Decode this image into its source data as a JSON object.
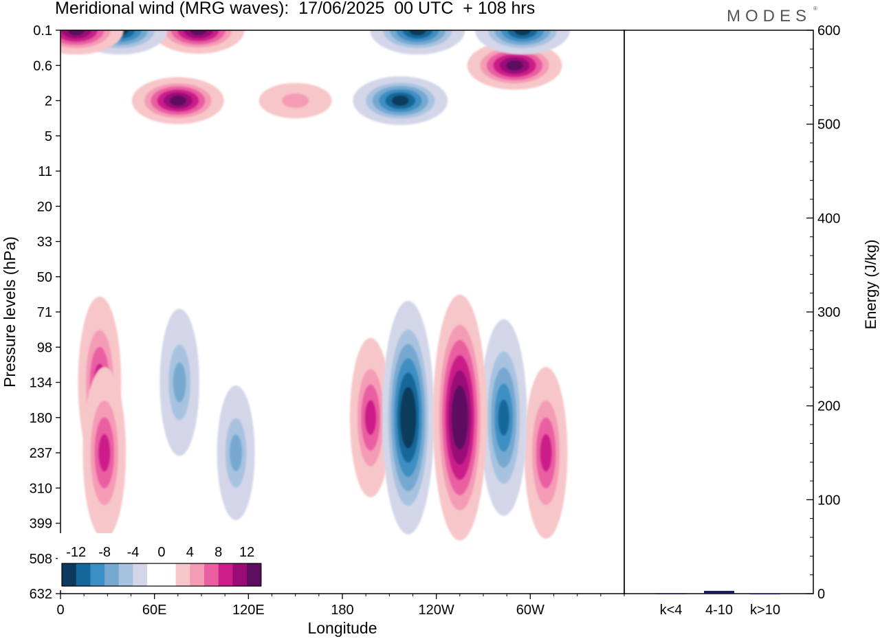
{
  "header": {
    "title": "Meridional wind (MRG waves):  17/06/2025  00 UTC  + 108 hrs",
    "brand": "MODES",
    "brand_mark": "®"
  },
  "chart_data": [
    {
      "type": "heatmap",
      "title": "Meridional wind (MRG waves):  17/06/2025  00 UTC  + 108 hrs",
      "xlabel": "Longitude",
      "ylabel": "Pressure levels (hPa)",
      "x_ticks": [
        "0",
        "60E",
        "120E",
        "180",
        "120W",
        "60W"
      ],
      "y_ticks": [
        "0.1",
        "0.6",
        "2",
        "5",
        "11",
        "20",
        "33",
        "50",
        "71",
        "98",
        "134",
        "180",
        "237",
        "310",
        "399",
        "508",
        "632"
      ],
      "colorbar": {
        "labels": [
          "-12",
          "-8",
          "-4",
          "0",
          "4",
          "8",
          "12"
        ],
        "colors": [
          "#0d3a5c",
          "#13679a",
          "#3c8fc4",
          "#77a9d0",
          "#a8c3e0",
          "#d3d6e8",
          "#ffffff",
          "#ffffff",
          "#f7c6c8",
          "#f49bb6",
          "#ea5fa2",
          "#cc1e8a",
          "#9a0b78",
          "#5b0f5e"
        ]
      },
      "features": [
        {
          "lon": 222,
          "level": "180",
          "value": -13
        },
        {
          "lon": 255,
          "level": "180",
          "value": 14
        },
        {
          "lon": 283,
          "level": "180",
          "value": -10
        },
        {
          "lon": 310,
          "level": "237",
          "value": 8
        },
        {
          "lon": 198,
          "level": "180",
          "value": 7
        },
        {
          "lon": 25,
          "level": "134",
          "value": 8
        },
        {
          "lon": 28,
          "level": "237",
          "value": 8
        },
        {
          "lon": 76,
          "level": "134",
          "value": -6
        },
        {
          "lon": 112,
          "level": "237",
          "value": -5
        },
        {
          "lon": 150,
          "level": "2",
          "value": 4
        },
        {
          "lon": 38,
          "level": "0.1",
          "value": -12
        },
        {
          "lon": 10,
          "level": "0.1",
          "value": 12
        },
        {
          "lon": 75,
          "level": "2",
          "value": 11
        },
        {
          "lon": 88,
          "level": "0.1",
          "value": 11
        },
        {
          "lon": 217,
          "level": "2",
          "value": -12
        },
        {
          "lon": 290,
          "level": "0.6",
          "value": 12
        },
        {
          "lon": 228,
          "level": "0.1",
          "value": -12
        },
        {
          "lon": 295,
          "level": "0.1",
          "value": -12
        }
      ]
    },
    {
      "type": "bar",
      "ylabel": "Energy (J/kg)",
      "categories": [
        "k<4",
        "4-10",
        "k>10"
      ],
      "values": [
        0.5,
        3,
        0.3
      ],
      "ylim": [
        0,
        600
      ],
      "y_ticks": [
        "0",
        "100",
        "200",
        "300",
        "400",
        "500",
        "600"
      ],
      "bar_color": "#1a1a5c"
    }
  ]
}
